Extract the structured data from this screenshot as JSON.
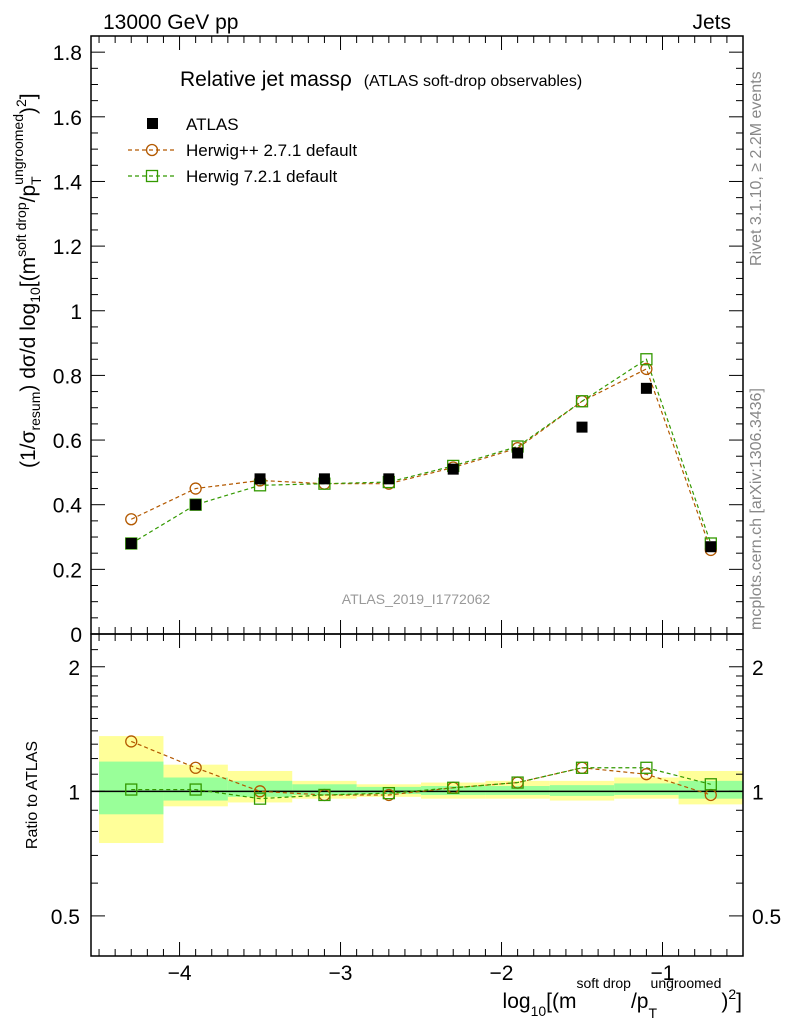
{
  "header": {
    "left": "13000 GeV pp",
    "right": "Jets"
  },
  "side_labels": {
    "rivet": "Rivet 3.1.10, ≥ 2.2M events",
    "mcplots": "mcplots.cern.ch [arXiv:1306.3436]"
  },
  "chart_data": {
    "type": "scatter",
    "title": "Relative jet massρ",
    "subtitle": "(ATLAS soft-drop observables)",
    "watermark": "ATLAS_2019_I1772062",
    "xlim": [
      -4.55,
      -0.5
    ],
    "x_ticks": [
      -4,
      -3,
      -2,
      -1
    ],
    "x_tick_labels": [
      "−4",
      "−3",
      "−2",
      "−1"
    ],
    "x": [
      -4.3,
      -3.9,
      -3.5,
      -3.1,
      -2.7,
      -2.3,
      -1.9,
      -1.5,
      -1.1,
      -0.7
    ],
    "x_bin_edges": [
      -4.5,
      -4.1,
      -3.7,
      -3.3,
      -2.9,
      -2.5,
      -2.1,
      -1.7,
      -1.3,
      -0.9,
      -0.5
    ],
    "xlabel": {
      "pre": "log",
      "sub10": "10",
      "open": "[(m",
      "sup1": "soft drop",
      "slash": "/p",
      "subT": "T",
      "sup2": "ungroomed",
      "close": ")",
      "sq": "2",
      "end": "]"
    },
    "main": {
      "ylim": [
        0,
        1.85
      ],
      "y_ticks": [
        0,
        0.2,
        0.4,
        0.6,
        0.8,
        1,
        1.2,
        1.4,
        1.6,
        1.8
      ],
      "y_tick_labels": [
        "0",
        "0.2",
        "0.4",
        "0.6",
        "0.8",
        "1",
        "1.2",
        "1.4",
        "1.6",
        "1.8"
      ],
      "ylabel": {
        "a": "(1/σ",
        "a_sub": "resum",
        "b": ") dσ/d log",
        "b_sub": "10",
        "c": "[(m",
        "c_sup": "soft drop",
        "d": "/p",
        "d_sub": "T",
        "d_sup": "ungroomed",
        "e": ")",
        "e_sup": "2",
        "f": "]"
      },
      "series": [
        {
          "name": "ATLAS",
          "marker": "filled-square",
          "color": "#000000",
          "values": [
            0.28,
            0.4,
            0.48,
            0.48,
            0.48,
            0.51,
            0.56,
            0.64,
            0.76,
            0.27
          ]
        },
        {
          "name": "Herwig++ 2.7.1 default",
          "marker": "open-circle",
          "color": "#b35900",
          "values": [
            0.355,
            0.45,
            0.475,
            0.465,
            0.465,
            0.515,
            0.575,
            0.72,
            0.82,
            0.26
          ]
        },
        {
          "name": "Herwig 7.2.1 default",
          "marker": "open-square",
          "color": "#339900",
          "values": [
            0.28,
            0.4,
            0.46,
            0.465,
            0.47,
            0.52,
            0.58,
            0.72,
            0.85,
            0.28
          ]
        }
      ]
    },
    "ratio": {
      "ylabel": "Ratio to ATLAS",
      "scale": "log",
      "ylim": [
        0.4,
        2.4
      ],
      "y_ticks": [
        0.5,
        1,
        2
      ],
      "y_tick_labels": [
        "0.5",
        "1",
        "2"
      ],
      "band_outer": [
        [
          0.75,
          1.36
        ],
        [
          0.92,
          1.16
        ],
        [
          0.94,
          1.12
        ],
        [
          0.96,
          1.06
        ],
        [
          0.97,
          1.04
        ],
        [
          0.96,
          1.05
        ],
        [
          0.96,
          1.06
        ],
        [
          0.95,
          1.06
        ],
        [
          0.96,
          1.08
        ],
        [
          0.93,
          1.12
        ]
      ],
      "band_inner": [
        [
          0.88,
          1.18
        ],
        [
          0.95,
          1.08
        ],
        [
          0.97,
          1.06
        ],
        [
          0.98,
          1.04
        ],
        [
          0.985,
          1.025
        ],
        [
          0.98,
          1.03
        ],
        [
          0.98,
          1.03
        ],
        [
          0.975,
          1.035
        ],
        [
          0.98,
          1.045
        ],
        [
          0.96,
          1.06
        ]
      ],
      "series": [
        {
          "name": "Herwig++ 2.7.1 default",
          "color": "#b35900",
          "values": [
            1.32,
            1.14,
            1.0,
            0.98,
            0.98,
            1.02,
            1.05,
            1.14,
            1.1,
            0.98
          ]
        },
        {
          "name": "Herwig 7.2.1 default",
          "color": "#339900",
          "values": [
            1.01,
            1.01,
            0.96,
            0.98,
            0.99,
            1.02,
            1.05,
            1.14,
            1.14,
            1.04
          ]
        }
      ]
    },
    "colors": {
      "band_outer": "#ffff99",
      "band_inner": "#99ff99"
    }
  }
}
